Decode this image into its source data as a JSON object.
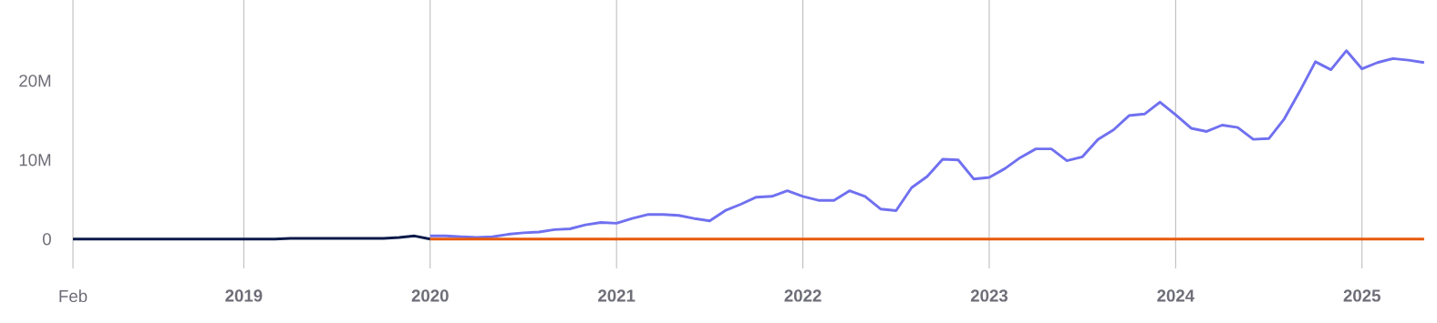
{
  "chart_data": {
    "type": "line",
    "grid": "x",
    "xlim": [
      "2018-02",
      "2025-05"
    ],
    "xticks": [
      {
        "value": "2018-02",
        "label": "Feb"
      },
      {
        "value": "2019-01",
        "label": "2019"
      },
      {
        "value": "2020-01",
        "label": "2020"
      },
      {
        "value": "2021-01",
        "label": "2021"
      },
      {
        "value": "2022-01",
        "label": "2022"
      },
      {
        "value": "2023-01",
        "label": "2023"
      },
      {
        "value": "2024-01",
        "label": "2024"
      },
      {
        "value": "2025-01",
        "label": "2025"
      }
    ],
    "ylim": [
      -3.7,
      30.2
    ],
    "yticks": [
      0,
      {
        "value": 10,
        "label": "10M"
      },
      {
        "value": 20,
        "label": "20M"
      }
    ],
    "series": [
      {
        "color": "#0b1a4a",
        "x": [
          "2018-02",
          "2018-03",
          "2018-04",
          "2018-05",
          "2018-06",
          "2018-07",
          "2018-08",
          "2018-09",
          "2018-10",
          "2018-11",
          "2018-12",
          "2019-01",
          "2019-02",
          "2019-03",
          "2019-04",
          "2019-05",
          "2019-06",
          "2019-07",
          "2019-08",
          "2019-09",
          "2019-10",
          "2019-11",
          "2019-12",
          "2020-01"
        ],
        "values": [
          0,
          0,
          0,
          0,
          0,
          0,
          0,
          0,
          0,
          0,
          0,
          0,
          0,
          0,
          0.1,
          0.1,
          0.1,
          0.1,
          0.1,
          0.1,
          0.1,
          0.2,
          0.4,
          0
        ]
      },
      {
        "color": "#7070f0",
        "x": [
          "2020-01",
          "2020-02",
          "2020-03",
          "2020-04",
          "2020-05",
          "2020-06",
          "2020-07",
          "2020-08",
          "2020-09",
          "2020-10",
          "2020-11",
          "2020-12",
          "2021-01",
          "2021-02",
          "2021-03",
          "2021-04",
          "2021-05",
          "2021-06",
          "2021-07",
          "2021-08",
          "2021-09",
          "2021-10",
          "2021-11",
          "2021-12",
          "2022-01",
          "2022-02",
          "2022-03",
          "2022-04",
          "2022-05",
          "2022-06",
          "2022-07",
          "2022-08",
          "2022-09",
          "2022-10",
          "2022-11",
          "2022-12",
          "2023-01",
          "2023-02",
          "2023-03",
          "2023-04",
          "2023-05",
          "2023-06",
          "2023-07",
          "2023-08",
          "2023-09",
          "2023-10",
          "2023-11",
          "2023-12",
          "2024-01",
          "2024-02",
          "2024-03",
          "2024-04",
          "2024-05",
          "2024-06",
          "2024-07",
          "2024-08",
          "2024-09",
          "2024-10",
          "2024-11",
          "2024-12",
          "2025-01",
          "2025-02",
          "2025-03",
          "2025-04",
          "2025-05"
        ],
        "values": [
          0.4,
          0.4,
          0.3,
          0.2,
          0.3,
          0.6,
          0.8,
          0.9,
          1.2,
          1.3,
          1.8,
          2.1,
          2.0,
          2.6,
          3.1,
          3.1,
          3.0,
          2.6,
          2.3,
          3.6,
          4.4,
          5.3,
          5.4,
          6.1,
          5.4,
          4.9,
          4.9,
          6.1,
          5.4,
          3.8,
          3.6,
          6.5,
          7.9,
          10.1,
          10.0,
          7.6,
          7.8,
          8.9,
          10.3,
          11.4,
          11.4,
          9.9,
          10.4,
          12.6,
          13.8,
          15.6,
          15.8,
          17.3,
          15.7,
          14.0,
          13.6,
          14.4,
          14.1,
          12.6,
          12.7,
          15.2,
          18.7,
          22.4,
          21.4,
          23.8,
          21.5,
          22.3,
          22.8,
          22.6,
          22.3
        ]
      },
      {
        "color": "#e8590c",
        "x": [
          "2020-01",
          "2025-05"
        ],
        "values": [
          0,
          0
        ]
      }
    ]
  }
}
